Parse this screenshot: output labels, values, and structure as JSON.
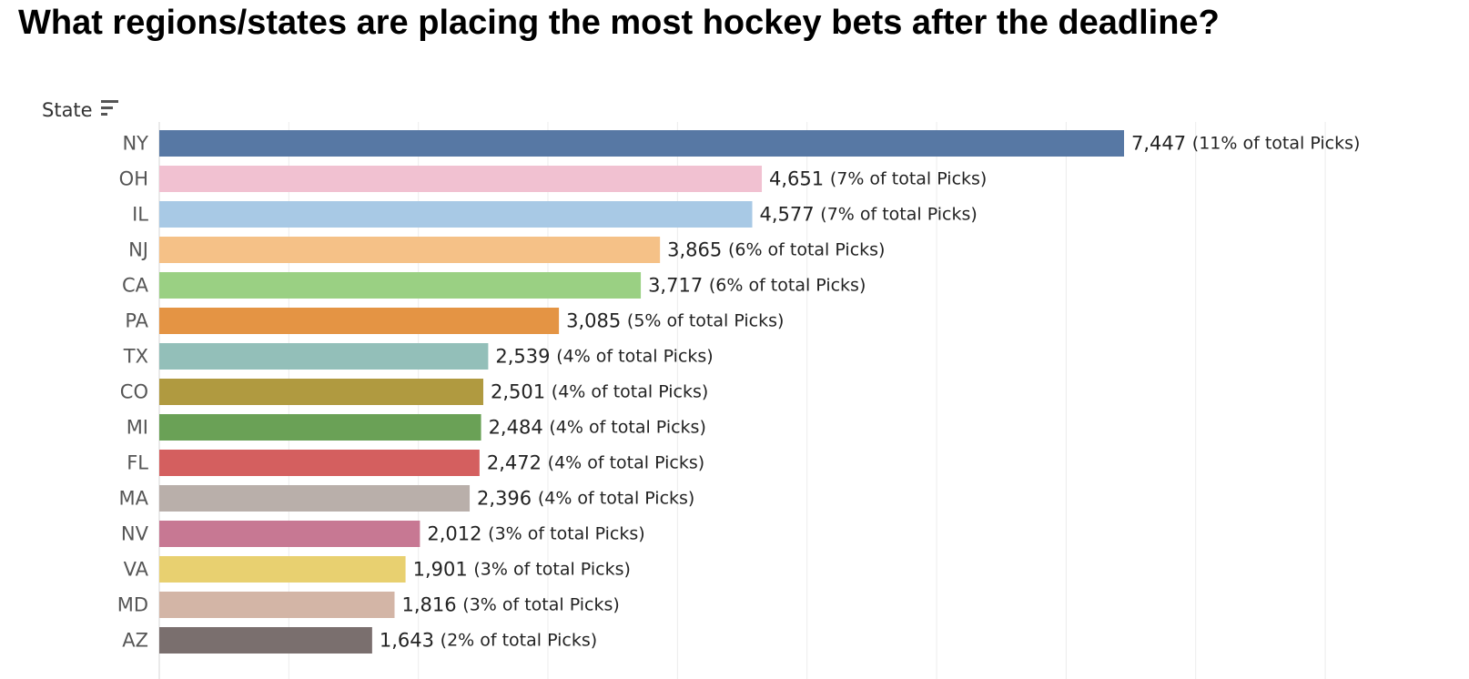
{
  "chart_data": {
    "type": "bar",
    "orientation": "horizontal",
    "title": "What regions/states are placing the most hockey bets after the deadline?",
    "ylabel": "State",
    "xlabel": "",
    "sort_icon": "sort-descending-icon",
    "xlim": [
      0,
      9000
    ],
    "grid": true,
    "categories": [
      "NY",
      "OH",
      "IL",
      "NJ",
      "CA",
      "PA",
      "TX",
      "CO",
      "MI",
      "FL",
      "MA",
      "NV",
      "VA",
      "MD",
      "AZ"
    ],
    "values": [
      7447,
      4651,
      4577,
      3865,
      3717,
      3085,
      2539,
      2501,
      2484,
      2472,
      2396,
      2012,
      1901,
      1816,
      1643
    ],
    "value_labels": [
      "7,447",
      "4,651",
      "4,577",
      "3,865",
      "3,717",
      "3,085",
      "2,539",
      "2,501",
      "2,484",
      "2,472",
      "2,396",
      "2,012",
      "1,901",
      "1,816",
      "1,643"
    ],
    "percent_labels": [
      "(11% of total Picks)",
      "(7% of total Picks)",
      "(7% of total Picks)",
      "(6% of total Picks)",
      "(6% of total Picks)",
      "(5% of total Picks)",
      "(4% of total Picks)",
      "(4% of total Picks)",
      "(4% of total Picks)",
      "(4% of total Picks)",
      "(4% of total Picks)",
      "(3% of total Picks)",
      "(3% of total Picks)",
      "(3% of total Picks)",
      "(2% of total Picks)"
    ],
    "colors": [
      "#5778a4",
      "#f1c1d1",
      "#a8c9e5",
      "#f5c187",
      "#9ad083",
      "#e49444",
      "#93bfb9",
      "#b09a40",
      "#6aa156",
      "#d45f5f",
      "#b9afaa",
      "#c77893",
      "#e8d070",
      "#d3b5a6",
      "#7a6f6e"
    ]
  }
}
